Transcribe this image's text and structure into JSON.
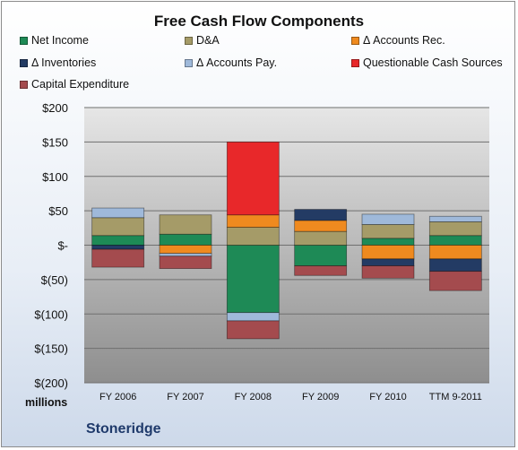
{
  "company": "Stoneridge",
  "chart_data": {
    "type": "bar",
    "stacked": true,
    "title": "Free Cash Flow Components",
    "ylabel": "",
    "units_label": "millions",
    "ylim": [
      -200,
      200
    ],
    "yticks": [
      200,
      150,
      100,
      50,
      0,
      -50,
      -100,
      -150,
      -200
    ],
    "ytick_labels": [
      "$200",
      "$150",
      "$100",
      "$50",
      "$-",
      "$(50)",
      "$(100)",
      "$(150)",
      "$(200)"
    ],
    "categories": [
      "FY 2006",
      "FY 2007",
      "FY 2008",
      "FY 2009",
      "FY 2010",
      "TTM 9-2011"
    ],
    "legend_position": "top",
    "grid": true,
    "series": [
      {
        "name": "Net Income",
        "color": "#1e8a56",
        "values": [
          14,
          16,
          -98,
          -30,
          10,
          14
        ]
      },
      {
        "name": "D&A",
        "color": "#a59b68",
        "values": [
          26,
          28,
          26,
          20,
          20,
          20
        ]
      },
      {
        "name": "Δ Accounts Rec.",
        "color": "#ef8a1f",
        "values": [
          0,
          -12,
          18,
          16,
          -20,
          -20
        ]
      },
      {
        "name": "Δ Inventories",
        "color": "#233b64",
        "values": [
          -6,
          0,
          0,
          16,
          -10,
          -18
        ]
      },
      {
        "name": "Δ Accounts Pay.",
        "color": "#9fb9da",
        "values": [
          14,
          -4,
          -12,
          0,
          15,
          8
        ]
      },
      {
        "name": "Questionable Cash Sources",
        "color": "#e8282a",
        "values": [
          0,
          0,
          106,
          0,
          0,
          0
        ]
      },
      {
        "name": "Capital Expenditure",
        "color": "#a44b4e",
        "values": [
          -26,
          -18,
          -26,
          -14,
          -18,
          -28
        ]
      }
    ]
  }
}
